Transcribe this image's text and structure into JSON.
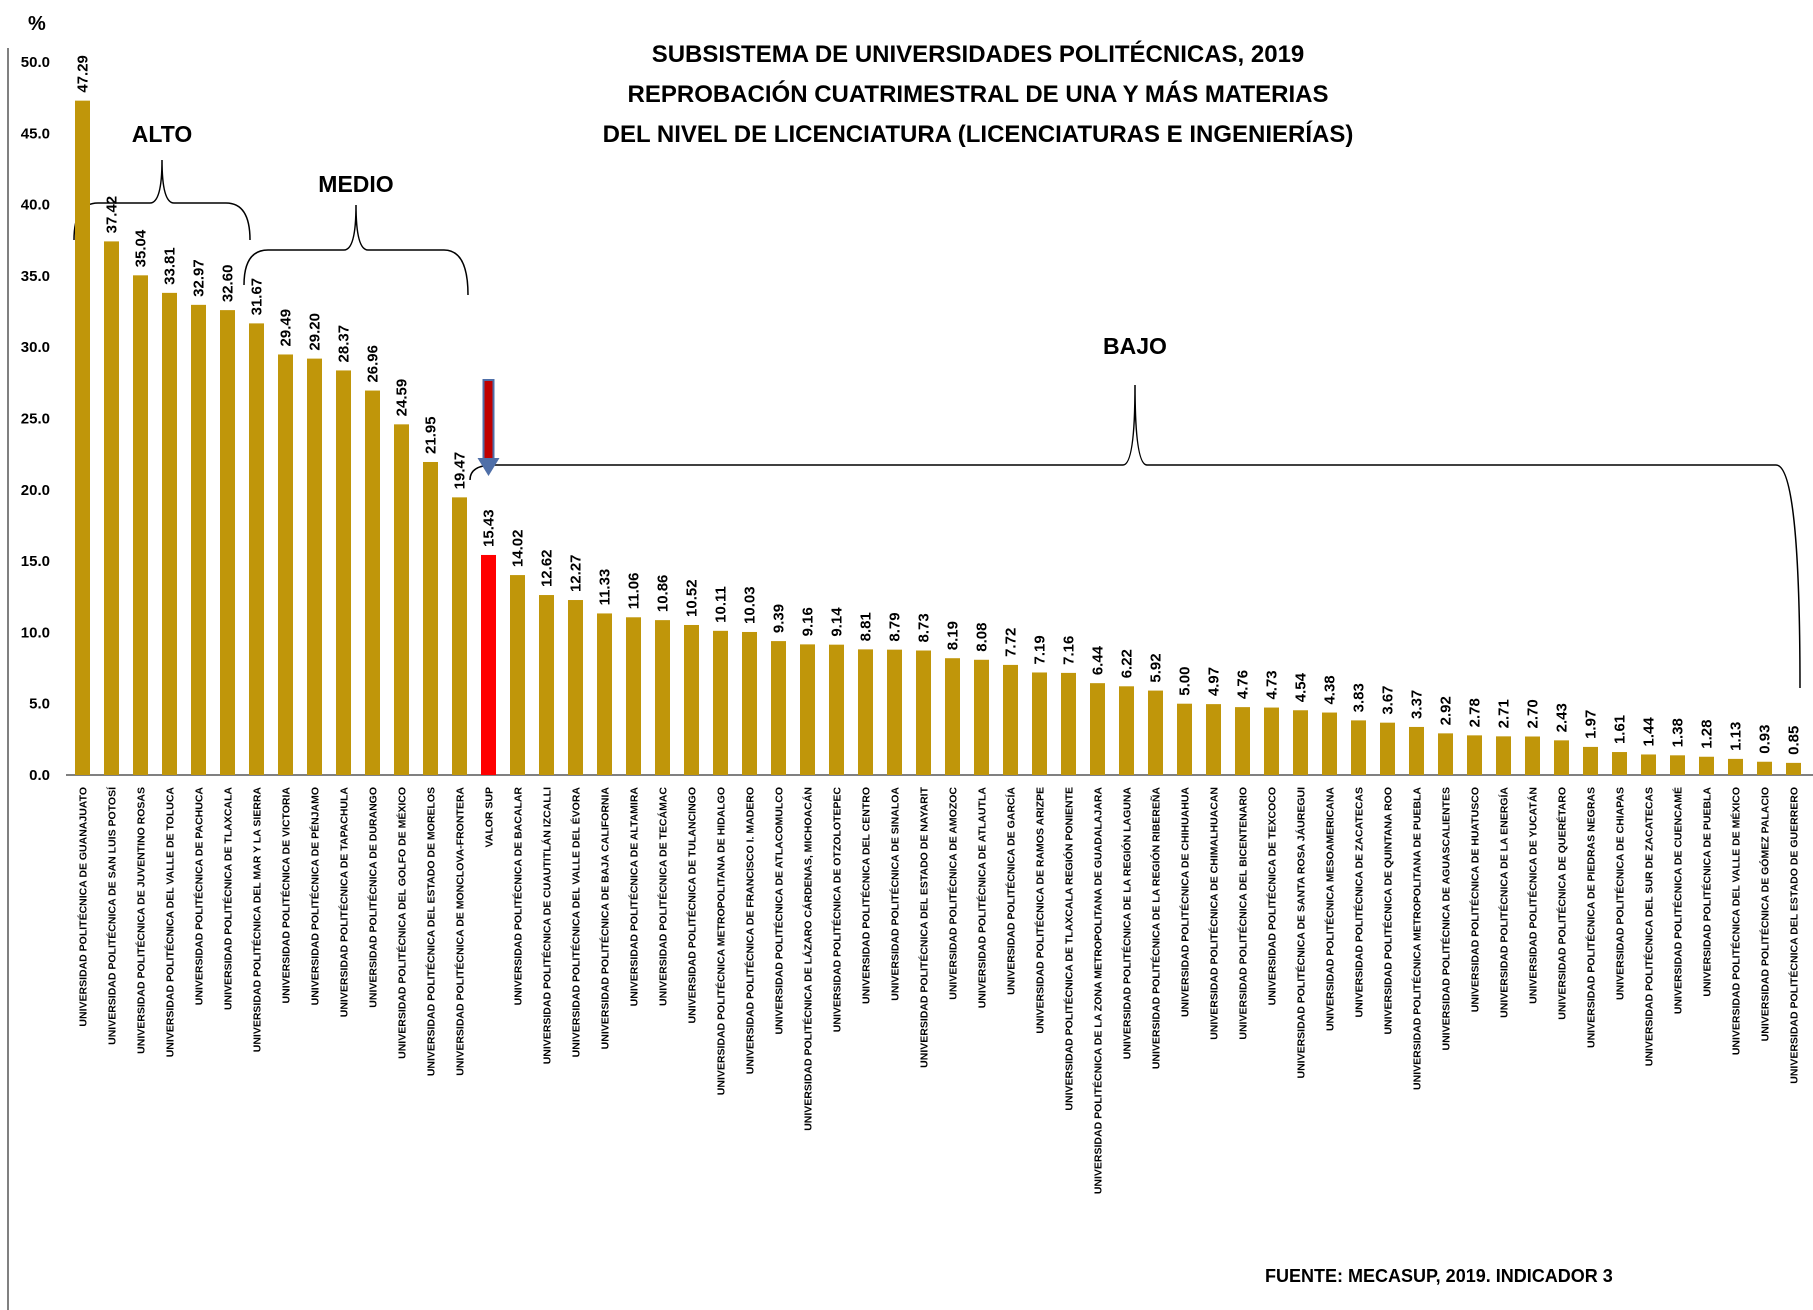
{
  "chart_data": {
    "type": "bar",
    "title": [
      "SUBSISTEMA DE UNIVERSIDADES POLITÉCNICAS, 2019",
      "REPROBACIÓN CUATRIMESTRAL DE UNA Y MÁS MATERIAS",
      "DEL NIVEL DE LICENCIATURA (LICENCIATURAS E INGENIERÍAS)"
    ],
    "ylabel": "%",
    "ylim": [
      0,
      50
    ],
    "yticks": [
      "0.0",
      "5.0",
      "10.0",
      "15.0",
      "20.0",
      "25.0",
      "30.0",
      "35.0",
      "40.0",
      "45.0",
      "50.0"
    ],
    "bar_color": "#C0960A",
    "highlight_color": "#FF0000",
    "highlight_category": "VALOR SUP",
    "categories": [
      "UNIVERSIDAD POLITÉCNICA DE GUANAJUATO",
      "UNIVERSIDAD POLITÉCNICA DE SAN LUIS POTOSÍ",
      "UNIVERSIDAD POLITÉCNICA DE JUVENTINO ROSAS",
      "UNIVERSIDAD POLITÉCNICA DEL VALLE DE TOLUCA",
      "UNIVERSIDAD POLITÉCNICA DE PACHUCA",
      "UNIVERSIDAD POLITÉCNICA DE TLAXCALA",
      "UNIVERSIDAD POLITÉCNICA DEL MAR Y LA SIERRA",
      "UNIVERSIDAD POLITÉCNICA DE VICTORIA",
      "UNIVERSIDAD POLITÉCNICA DE PÉNJAMO",
      "UNIVERSIDAD POLITÉCNICA DE TAPACHULA",
      "UNIVERSIDAD POLITÉCNICA DE DURANGO",
      "UNIVERSIDAD POLITÉCNICA DEL GOLFO DE MÉXICO",
      "UNIVERSIDAD POLITÉCNICA DEL ESTADO DE MORELOS",
      "UNIVERSIDAD POLITÉCNICA DE MONCLOVA-FRONTERA",
      "VALOR SUP",
      "UNIVERSIDAD POLITÉCNICA DE BACALAR",
      "UNIVERSIDAD POLITÉCNICA DE CUAUTITLÁN IZCALLI",
      "UNIVERSIDAD POLITÉCNICA DEL VALLE DEL ÉVORA",
      "UNIVERSIDAD POLITÉCNICA DE BAJA CALIFORNIA",
      "UNIVERSIDAD POLITÉCNICA DE ALTAMIRA",
      "UNIVERSIDAD POLITÉCNICA DE TECÁMAC",
      "UNIVERSIDAD POLITÉCNICA DE TULANCINGO",
      "UNIVERSIDAD POLITÉCNICA METROPOLITANA DE HIDALGO",
      "UNIVERSIDAD POLITÉCNICA DE FRANCISCO I. MADERO",
      "UNIVERSIDAD POLITÉCNICA DE ATLACOMULCO",
      "UNIVERSIDAD POLITÉCNICA DE LÁZARO CÁRDENAS, MICHOACÁN",
      "UNIVERSIDAD POLITÉCNICA DE OTZOLOTEPEC",
      "UNIVERSIDAD POLITÉCNICA DEL CENTRO",
      "UNIVERSIDAD POLITÉCNICA DE SINALOA",
      "UNIVERSIDAD POLITÉCNICA DEL ESTADO DE NAYARIT",
      "UNIVERSIDAD POLITÉCNICA DE AMOZOC",
      "UNIVERSIDAD POLITÉCNICA DE ATLAUTLA",
      "UNIVERSIDAD POLITÉCNICA DE GARCÍA",
      "UNIVERSIDAD POLITÉCNICA DE RAMOS ARIZPE",
      "UNIVERSIDAD POLITÉCNICA DE TLAXCALA REGIÓN PONIENTE",
      "UNIVERSIDAD POLITÉCNICA DE LA ZONA METROPOLITANA DE GUADALAJARA",
      "UNIVERSIDAD POLITÉCNICA DE LA REGIÓN LAGUNA",
      "UNIVERSIDAD POLITÉCNICA DE LA REGIÓN RIBEREÑA",
      "UNIVERSIDAD POLITÉCNICA DE CHIHUAHUA",
      "UNIVERSIDAD POLITÉCNICA DE CHIMALHUACAN",
      "UNIVERSIDAD POLITÉCNICA DEL BICENTENARIO",
      "UNIVERSIDAD POLITÉCNICA DE TEXCOCO",
      "UNIVERSIDAD POLITÉCNICA DE SANTA ROSA JÁUREGUI",
      "UNIVERSIDAD POLITÉCNICA MESOAMERICANA",
      "UNIVERSIDAD POLITÉCNICA DE ZACATECAS",
      "UNIVERSIDAD POLITÉCNICA DE QUINTANA ROO",
      "UNIVERSIDAD POLITÉCNICA METROPOLITANA DE PUEBLA",
      "UNIVERSIDAD POLITÉCNICA DE AGUASCALIENTES",
      "UNIVERSIDAD POLITÉCNICA DE HUATUSCO",
      "UNIVERSIDAD POLITÉCNICA DE LA ENERGÍA",
      "UNIVERSIDAD POLITÉCNICA DE YUCATÁN",
      "UNIVERSIDAD POLITÉCNICA DE QUERÉTARO",
      "UNIVERSIDAD POLITÉCNICA DE PIEDRAS NEGRAS",
      "UNIVERSIDAD POLITÉCNICA DE CHIAPAS",
      "UNIVERSIDAD POLITÉCNICA DEL SUR DE ZACATECAS",
      "UNIVERSIDAD POLITÉCNICA DE CUENCAMÉ",
      "UNIVERSIDAD POLITÉCNICA DE PUEBLA",
      "UNIVERSIDAD POLITÉCNICA DEL VALLE DE MÉXICO",
      "UNIVERSIDAD POLITÉCNICA DE GÓMEZ PALACIO",
      "UNIVERSIDAD POLITÉCNICA DEL ESTADO DE GUERRERO"
    ],
    "values": [
      47.29,
      37.42,
      35.04,
      33.81,
      32.97,
      32.6,
      31.67,
      29.49,
      29.2,
      28.37,
      26.96,
      24.59,
      21.95,
      19.47,
      15.43,
      14.02,
      12.62,
      12.27,
      11.33,
      11.06,
      10.86,
      10.52,
      10.11,
      10.03,
      9.39,
      9.16,
      9.14,
      8.81,
      8.79,
      8.73,
      8.19,
      8.08,
      7.72,
      7.19,
      7.16,
      6.44,
      6.22,
      5.92,
      5.0,
      4.97,
      4.76,
      4.73,
      4.54,
      4.38,
      3.83,
      3.67,
      3.37,
      2.92,
      2.78,
      2.71,
      2.7,
      2.43,
      1.97,
      1.61,
      1.44,
      1.38,
      1.28,
      1.13,
      0.93,
      0.85
    ],
    "value_labels": [
      "47.29",
      "37.42",
      "35.04",
      "33.81",
      "32.97",
      "32.60",
      "31.67",
      "29.49",
      "29.20",
      "28.37",
      "26.96",
      "24.59",
      "21.95",
      "19.47",
      "15.43",
      "14.02",
      "12.62",
      "12.27",
      "11.33",
      "11.06",
      "10.86",
      "10.52",
      "10.11",
      "10.03",
      "9.39",
      "9.16",
      "9.14",
      "8.81",
      "8.79",
      "8.73",
      "8.19",
      "8.08",
      "7.72",
      "7.19",
      "7.16",
      "6.44",
      "6.22",
      "5.92",
      "5.00",
      "4.97",
      "4.76",
      "4.73",
      "4.54",
      "4.38",
      "3.83",
      "3.67",
      "3.37",
      "2.92",
      "2.78",
      "2.71",
      "2.70",
      "2.43",
      "1.97",
      "1.61",
      "1.44",
      "1.38",
      "1.28",
      "1.13",
      "0.93",
      "0.85"
    ],
    "groups": [
      {
        "label": "ALTO",
        "first": 0,
        "last": 5
      },
      {
        "label": "MEDIO",
        "first": 6,
        "last": 13
      },
      {
        "label": "BAJO",
        "first": 14,
        "last": 59
      }
    ],
    "annotation": {
      "type": "arrow",
      "target": "VALOR SUP",
      "color": "#4F6FA8"
    },
    "source": "FUENTE: MECASUP, 2019. INDICADOR 3",
    "grid": false,
    "legend": "none"
  }
}
